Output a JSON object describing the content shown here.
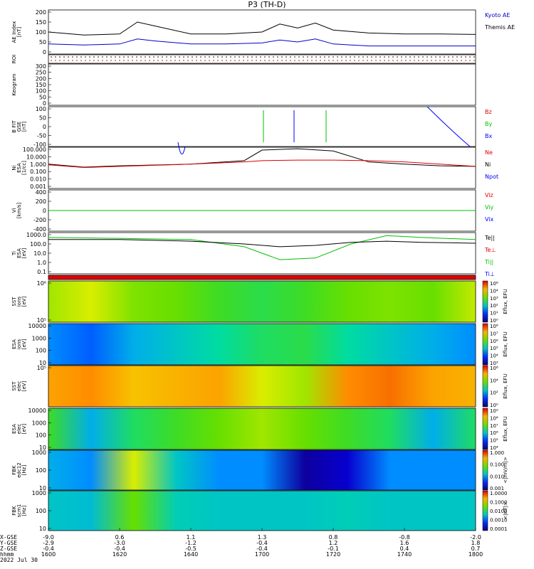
{
  "title": "P3 (TH-D)",
  "colors": {
    "ae_kyoto": "#000000",
    "ae_themis": "#0000cc",
    "red": "#e00000",
    "green": "#00c000",
    "blue": "#0000ff",
    "black": "#000000"
  },
  "panels": [
    {
      "id": "ae",
      "ylabel": [
        "AE Index",
        "[nT]"
      ],
      "yticks": [
        "200",
        "150",
        "100",
        "50",
        "0"
      ],
      "legend": [
        {
          "text": "Kyoto AE",
          "color": "#0000cc"
        },
        {
          "text": "Themis AE",
          "color": "#000000"
        }
      ]
    },
    {
      "id": "roi",
      "ylabel": [
        "ROI"
      ],
      "yticks": [],
      "legend": []
    },
    {
      "id": "keogram",
      "ylabel": [
        "Keogram"
      ],
      "yticks": [
        "300",
        "250",
        "200",
        "150",
        "100",
        "50",
        "0"
      ],
      "legend": []
    },
    {
      "id": "bfield",
      "ylabel": [
        "B FIT",
        "GSE",
        "[nT]"
      ],
      "yticks": [
        "100",
        "50",
        "0",
        "-50",
        "-100"
      ],
      "legend": [
        {
          "text": "Bz",
          "color": "#e00000"
        },
        {
          "text": "By",
          "color": "#00c000"
        },
        {
          "text": "Bx",
          "color": "#0000ff"
        }
      ]
    },
    {
      "id": "ni",
      "ylabel": [
        "Ni",
        "ESA",
        "[1/cc]"
      ],
      "yticks": [
        "100.000",
        "10.000",
        "1.000",
        "0.100",
        "0.010",
        "0.001"
      ],
      "legend": [
        {
          "text": "Ne",
          "color": "#e00000"
        },
        {
          "text": "Ni",
          "color": "#000000"
        },
        {
          "text": "Npot",
          "color": "#0000ff"
        }
      ]
    },
    {
      "id": "vi",
      "ylabel": [
        "Vi",
        "[km/s]"
      ],
      "yticks": [
        "400",
        "200",
        "0",
        "-200",
        "-400"
      ],
      "legend": [
        {
          "text": "Viz",
          "color": "#e00000"
        },
        {
          "text": "Viy",
          "color": "#00c000"
        },
        {
          "text": "Vix",
          "color": "#0000ff"
        }
      ]
    },
    {
      "id": "ti",
      "ylabel": [
        "Ti",
        "ESA",
        "[eV]"
      ],
      "yticks": [
        "1000.0",
        "100.0",
        "10.0",
        "1.0",
        "0.1"
      ],
      "legend": [
        {
          "text": "Te||",
          "color": "#000000"
        },
        {
          "text": "Te⊥",
          "color": "#e00000"
        },
        {
          "text": "Ti||",
          "color": "#00c000"
        },
        {
          "text": "Ti⊥",
          "color": "#0000ff"
        }
      ]
    },
    {
      "id": "bar",
      "ylabel": [],
      "yticks": [],
      "legend": []
    },
    {
      "id": "sst_ion",
      "ylabel": [
        "SST",
        "ions",
        "[eV]"
      ],
      "yticks": [
        "10⁶",
        "10⁵"
      ],
      "cbar_ticks": [
        "10⁸",
        "10⁴",
        "10³",
        "10²",
        "10¹",
        "10⁰"
      ],
      "cbar_label": "Eflux, EFU"
    },
    {
      "id": "esa_ion",
      "ylabel": [
        "ESA",
        "ions",
        "[eV]"
      ],
      "yticks": [
        "10000",
        "1000",
        "100",
        "10"
      ],
      "cbar_ticks": [
        "10⁸",
        "10⁷",
        "10⁶",
        "10⁵",
        "10⁴",
        "10³"
      ],
      "cbar_label": "Eflux, EFU"
    },
    {
      "id": "sst_elec",
      "ylabel": [
        "SST",
        "elec",
        "[eV]"
      ],
      "yticks": [
        "10⁵"
      ],
      "cbar_ticks": [
        "10⁶",
        "10⁴",
        "10²",
        "10⁰"
      ],
      "cbar_label": "Eflux, EFU"
    },
    {
      "id": "esa_elec",
      "ylabel": [
        "ESA",
        "elec",
        "[eV]"
      ],
      "yticks": [
        "10000",
        "1000",
        "100",
        "10"
      ],
      "cbar_ticks": [
        "10⁹",
        "10⁸",
        "10⁷",
        "10⁶",
        "10⁵",
        "10⁴"
      ],
      "cbar_label": "Eflux, EFU"
    },
    {
      "id": "fbk_e",
      "ylabel": [
        "FBK",
        "edc12",
        "[Hz]"
      ],
      "yticks": [
        "1000",
        "100",
        "10"
      ],
      "cbar_ticks": [
        "1.000",
        "0.100",
        "0.010",
        "0.001"
      ],
      "cbar_label": "<|mV/m|>"
    },
    {
      "id": "fbk_b",
      "ylabel": [
        "FBK",
        "scm1",
        "[Hz]"
      ],
      "yticks": [
        "1000",
        "100",
        "10"
      ],
      "cbar_ticks": [
        "1.0000",
        "0.1000",
        "0.0100",
        "0.0010",
        "0.0001"
      ],
      "cbar_label": "<|nT|>"
    }
  ],
  "xaxis": {
    "row_labels": [
      "X-GSE",
      "Y-GSE",
      "Z-GSE",
      "hhmm",
      "2022 Jul 30"
    ],
    "columns": [
      [
        "-9.0",
        "-2.9",
        "-0.4",
        "1600"
      ],
      [
        "0.6",
        "-3.0",
        "-0.4",
        "1620"
      ],
      [
        "1.1",
        "-1.2",
        "-0.5",
        "1640"
      ],
      [
        "1.3",
        "-0.4",
        "-0.4",
        "1700"
      ],
      [
        "0.8",
        "1.2",
        "-0.1",
        "1720"
      ],
      [
        "-0.8",
        "1.6",
        "0.4",
        "1740"
      ],
      [
        "-2.0",
        "1.8",
        "0.7",
        "1800"
      ]
    ]
  },
  "chart_data": {
    "type": "line",
    "x_time": [
      "1600",
      "1620",
      "1640",
      "1700",
      "1720",
      "1740",
      "1800"
    ],
    "series": [
      {
        "name": "Themis AE",
        "panel": "ae",
        "x": [
          "1600",
          "1610",
          "1620",
          "1625",
          "1630",
          "1640",
          "1650",
          "1700",
          "1705",
          "1710",
          "1715",
          "1720",
          "1730",
          "1740",
          "1750",
          "1800"
        ],
        "y": [
          100,
          85,
          90,
          150,
          130,
          90,
          90,
          100,
          140,
          120,
          145,
          110,
          95,
          90,
          90,
          88
        ]
      },
      {
        "name": "Kyoto AE",
        "panel": "ae",
        "x": [
          "1600",
          "1610",
          "1620",
          "1625",
          "1630",
          "1640",
          "1650",
          "1700",
          "1705",
          "1710",
          "1715",
          "1720",
          "1730",
          "1740",
          "1750",
          "1800"
        ],
        "y": [
          40,
          35,
          40,
          65,
          55,
          40,
          40,
          45,
          60,
          50,
          65,
          40,
          30,
          30,
          30,
          30
        ]
      },
      {
        "name": "Ni",
        "panel": "ni",
        "x": [
          "1600",
          "1610",
          "1620",
          "1640",
          "1655",
          "1700",
          "1710",
          "1720",
          "1730",
          "1740",
          "1750",
          "1800"
        ],
        "y": [
          1.0,
          0.4,
          0.6,
          1.0,
          3.0,
          80,
          120,
          60,
          2.0,
          1.0,
          0.6,
          0.5
        ]
      },
      {
        "name": "Ne",
        "panel": "ni",
        "x": [
          "1600",
          "1610",
          "1620",
          "1640",
          "1655",
          "1700",
          "1710",
          "1720",
          "1730",
          "1740",
          "1750",
          "1800"
        ],
        "y": [
          0.8,
          0.35,
          0.5,
          1.0,
          2.0,
          3.0,
          3.5,
          3.5,
          3.0,
          2.0,
          1.0,
          0.5
        ]
      },
      {
        "name": "Ti||",
        "panel": "ti",
        "x": [
          "1600",
          "1620",
          "1640",
          "1655",
          "1705",
          "1715",
          "1725",
          "1735",
          "1745",
          "1800"
        ],
        "y": [
          500,
          400,
          300,
          50,
          2,
          3,
          100,
          800,
          500,
          300
        ]
      },
      {
        "name": "Te||",
        "panel": "ti",
        "x": [
          "1600",
          "1620",
          "1640",
          "1655",
          "1705",
          "1715",
          "1725",
          "1735",
          "1745",
          "1800"
        ],
        "y": [
          300,
          300,
          200,
          100,
          50,
          70,
          150,
          200,
          150,
          120
        ]
      }
    ]
  }
}
